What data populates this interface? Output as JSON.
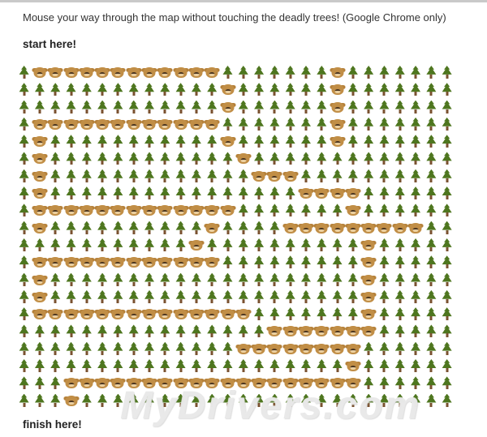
{
  "page": {
    "title": "Mouse your way through the map without touching the deadly trees! (Google Chrome only)",
    "start_label": "start here!",
    "finish_label": "finish here!",
    "watermark": "MyDrivers.com"
  },
  "maze": {
    "legend": {
      "T": "tree-emoji (deadly)",
      "B": "bear-emoji (safe path)"
    },
    "tree_color": "#4e761f",
    "bear_color": "#c18e46",
    "bear_ear_color": "#b5813a",
    "columns": 28,
    "rows": [
      "TBBBBBBBBBBBBTTTTTTTBTTTTTTT",
      "TTTTTTTTTTTTTBTTTTTTBTTTTTTT",
      "TTTTTTTTTTTTTBTTTTTTBTTTTTTT",
      "TBBBBBBBBBBBBTTTTTTTBTTTTTTT",
      "TBTTTTTTTTTTTBTTTTTTBTTTTTTT",
      "TBTTTTTTTTTTTTBTTTTTTTTTTTTT",
      "TBTTTTTTTTTTTTTBBBTTTTTTTTTT",
      "TBTTTTTTTTTTTTTTTTBBBBTTTTTT",
      "TBBBBBBBBBBBBBTTTTTTTBTTTTTT",
      "TBTTTTTTTTTTBTTTTBBBBBBBBBTT",
      "TTTTTTTTTTTBTTTTTTTTTTBTTTTT",
      "TBBBBBBBBBBBBTTTTTTTTTBTTTTT",
      "TBTTTTTTTTTTTTTTTTTTTTBTTTTT",
      "TBTTTTTTTTTTTTTTTTTTTTBTTTTT",
      "TBBBBBBBBBBBBBBTTTTTTTBTTTTT",
      "TTTTTTTTTTTTTTTTBBBBBBBTTTTT",
      "TTTTTTTTTTTTTTBBBBBBBBTTTTTT",
      "TTTTTTTTTTTTTTTTTTTTTBTTTTTT",
      "TTTBBBBBBBBBBBBBBBBBBBTTTTTT",
      "TTTBTTTTTTTTTTTTTTTTTTTTTTTT"
    ]
  }
}
